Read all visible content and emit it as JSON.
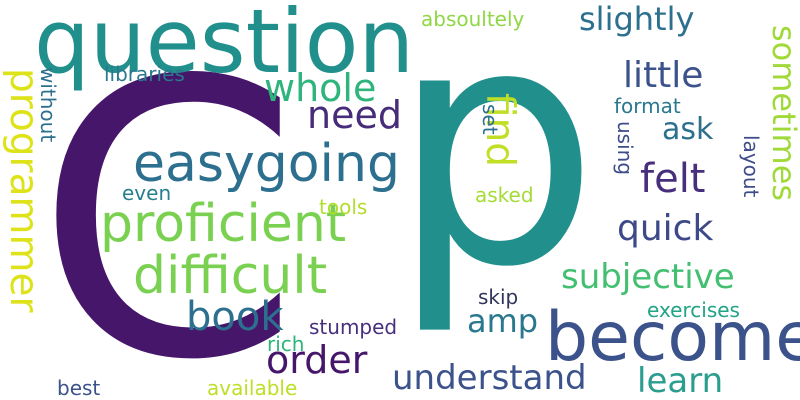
{
  "cloud": {
    "background": "#ffffff",
    "words": [
      {
        "text": "C",
        "color": "#46166b"
      },
      {
        "text": "p",
        "color": "#21908c"
      },
      {
        "text": "question",
        "color": "#21908c"
      },
      {
        "text": "become",
        "color": "#3b528b"
      },
      {
        "text": "easygoing",
        "color": "#2d6f8e"
      },
      {
        "text": "proficient",
        "color": "#7ad151"
      },
      {
        "text": "difficult",
        "color": "#7ad151"
      },
      {
        "text": "programmer",
        "color": "#dde318"
      },
      {
        "text": "understand",
        "color": "#3b528b"
      },
      {
        "text": "learn",
        "color": "#2a9d8f"
      },
      {
        "text": "book",
        "color": "#2c6f8e"
      },
      {
        "text": "order",
        "color": "#46166b"
      },
      {
        "text": "subjective",
        "color": "#43bf71"
      },
      {
        "text": "quick",
        "color": "#3e4989"
      },
      {
        "text": "felt",
        "color": "#472f7d"
      },
      {
        "text": "ask",
        "color": "#2d708e"
      },
      {
        "text": "little",
        "color": "#3b528b"
      },
      {
        "text": "slightly",
        "color": "#2c6f8e"
      },
      {
        "text": "whole",
        "color": "#2fb47c"
      },
      {
        "text": "need",
        "color": "#472c7a"
      },
      {
        "text": "find",
        "color": "#c0df25"
      },
      {
        "text": "amp",
        "color": "#2a788e"
      },
      {
        "text": "sometimes",
        "color": "#a0da39"
      },
      {
        "text": "absoultely",
        "color": "#8fd744"
      },
      {
        "text": "libraries",
        "color": "#2a788e"
      },
      {
        "text": "without",
        "color": "#2d6f8e"
      },
      {
        "text": "set",
        "color": "#2d6f8e"
      },
      {
        "text": "using",
        "color": "#3e4c8a"
      },
      {
        "text": "format",
        "color": "#2a788e"
      },
      {
        "text": "layout",
        "color": "#3e4c8a"
      },
      {
        "text": "even",
        "color": "#27808e"
      },
      {
        "text": "tools",
        "color": "#b2dd2d"
      },
      {
        "text": "asked",
        "color": "#a5db36"
      },
      {
        "text": "skip",
        "color": "#31345b"
      },
      {
        "text": "exercises",
        "color": "#20a386"
      },
      {
        "text": "stumped",
        "color": "#472f7d"
      },
      {
        "text": "rich",
        "color": "#2fb47c"
      },
      {
        "text": "best",
        "color": "#3b528b"
      },
      {
        "text": "available",
        "color": "#bddf26"
      }
    ]
  }
}
